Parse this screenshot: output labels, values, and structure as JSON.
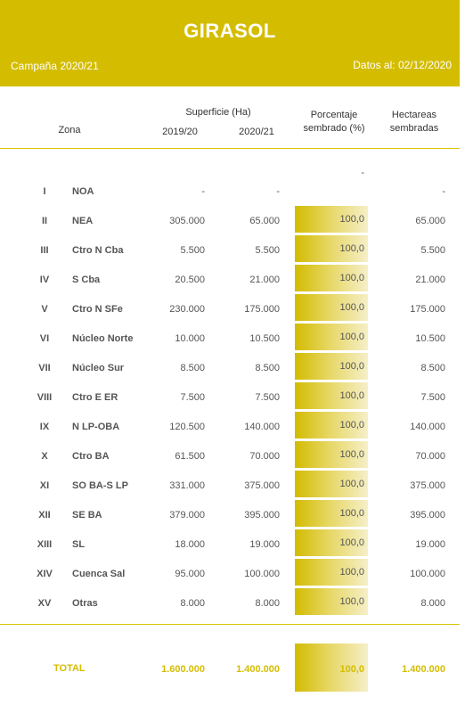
{
  "header": {
    "title": "GIRASOL",
    "campaign": "Campaña 2020/21",
    "date": "Datos al: 02/12/2020"
  },
  "columns": {
    "zona": "Zona",
    "superficie": "Superficie (Ha)",
    "year1": "2019/20",
    "year2": "2020/21",
    "pct_line1": "Porcentaje",
    "pct_line2": "sembrado (%)",
    "hect_line1": "Hectareas",
    "hect_line2": "sembradas"
  },
  "rows": [
    {
      "num": "I",
      "zona": "NOA",
      "s19": "-",
      "s20": "-",
      "pct": "-",
      "hect": "-",
      "bar": false
    },
    {
      "num": "II",
      "zona": "NEA",
      "s19": "305.000",
      "s20": "65.000",
      "pct": "100,0",
      "hect": "65.000",
      "bar": true
    },
    {
      "num": "III",
      "zona": "Ctro N Cba",
      "s19": "5.500",
      "s20": "5.500",
      "pct": "100,0",
      "hect": "5.500",
      "bar": true
    },
    {
      "num": "IV",
      "zona": "S Cba",
      "s19": "20.500",
      "s20": "21.000",
      "pct": "100,0",
      "hect": "21.000",
      "bar": true
    },
    {
      "num": "V",
      "zona": "Ctro N SFe",
      "s19": "230.000",
      "s20": "175.000",
      "pct": "100,0",
      "hect": "175.000",
      "bar": true
    },
    {
      "num": "VI",
      "zona": "Núcleo Norte",
      "s19": "10.000",
      "s20": "10.500",
      "pct": "100,0",
      "hect": "10.500",
      "bar": true
    },
    {
      "num": "VII",
      "zona": "Núcleo Sur",
      "s19": "8.500",
      "s20": "8.500",
      "pct": "100,0",
      "hect": "8.500",
      "bar": true
    },
    {
      "num": "VIII",
      "zona": "Ctro E ER",
      "s19": "7.500",
      "s20": "7.500",
      "pct": "100,0",
      "hect": "7.500",
      "bar": true
    },
    {
      "num": "IX",
      "zona": "N LP-OBA",
      "s19": "120.500",
      "s20": "140.000",
      "pct": "100,0",
      "hect": "140.000",
      "bar": true
    },
    {
      "num": "X",
      "zona": "Ctro BA",
      "s19": "61.500",
      "s20": "70.000",
      "pct": "100,0",
      "hect": "70.000",
      "bar": true
    },
    {
      "num": "XI",
      "zona": "SO BA-S LP",
      "s19": "331.000",
      "s20": "375.000",
      "pct": "100,0",
      "hect": "375.000",
      "bar": true
    },
    {
      "num": "XII",
      "zona": "SE BA",
      "s19": "379.000",
      "s20": "395.000",
      "pct": "100,0",
      "hect": "395.000",
      "bar": true
    },
    {
      "num": "XIII",
      "zona": "SL",
      "s19": "18.000",
      "s20": "19.000",
      "pct": "100,0",
      "hect": "19.000",
      "bar": true
    },
    {
      "num": "XIV",
      "zona": "Cuenca Sal",
      "s19": "95.000",
      "s20": "100.000",
      "pct": "100,0",
      "hect": "100.000",
      "bar": true
    },
    {
      "num": "XV",
      "zona": "Otras",
      "s19": "8.000",
      "s20": "8.000",
      "pct": "100,0",
      "hect": "8.000",
      "bar": true
    }
  ],
  "total": {
    "label": "TOTAL",
    "s19": "1.600.000",
    "s20": "1.400.000",
    "pct": "100,0",
    "hect": "1.400.000"
  },
  "colors": {
    "accent": "#d4bd00",
    "text": "#555555"
  }
}
